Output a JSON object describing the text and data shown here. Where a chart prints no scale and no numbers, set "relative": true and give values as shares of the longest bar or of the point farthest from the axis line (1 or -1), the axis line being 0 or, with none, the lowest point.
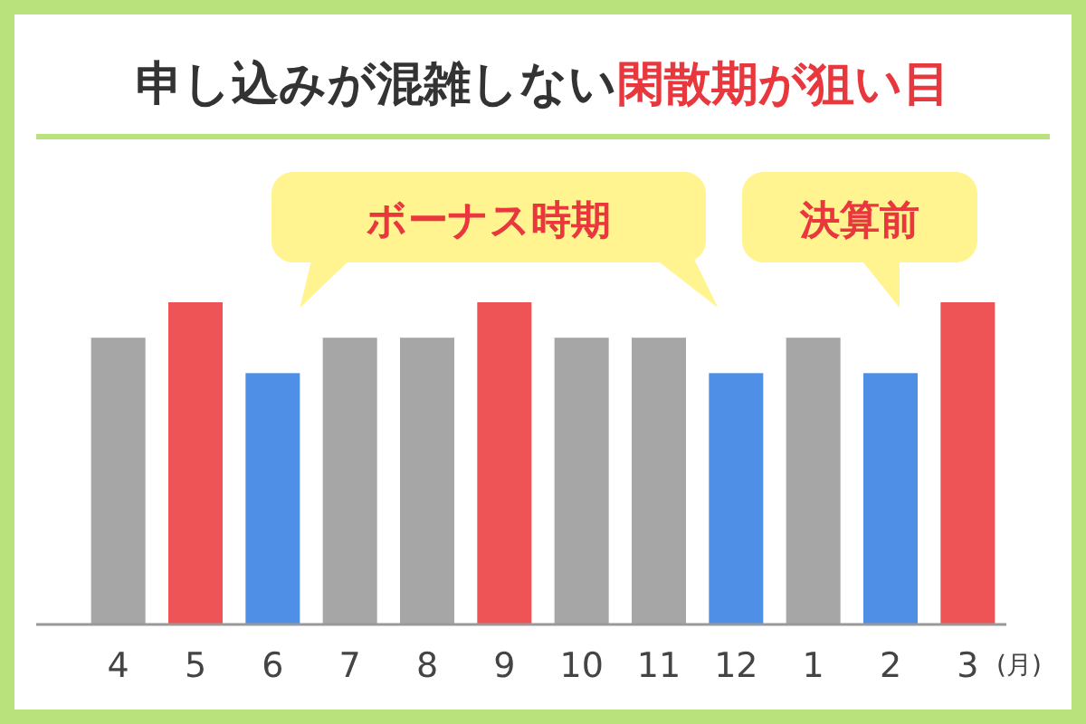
{
  "chart_data": {
    "type": "bar",
    "title": "申し込みが混雑しない",
    "subtitle": "閑散期が狙い目",
    "relative": true,
    "categories": [
      "4",
      "5",
      "6",
      "7",
      "8",
      "9",
      "10",
      "11",
      "12",
      "1",
      "2",
      "3"
    ],
    "values": [
      0.89,
      1,
      0.78,
      0.89,
      0.89,
      1,
      0.89,
      0.89,
      0.78,
      0.89,
      0.78,
      1
    ],
    "colors": [
      "#a6a6a6",
      "#ee5455",
      "#4f8fe6",
      "#a6a6a6",
      "#a6a6a6",
      "#ee5455",
      "#a6a6a6",
      "#a6a6a6",
      "#4f8fe6",
      "#a6a6a6",
      "#4f8fe6",
      "#ee5455"
    ],
    "xlabel": "(月)",
    "annotations": [
      "ボーナス時期",
      "決算前"
    ]
  }
}
